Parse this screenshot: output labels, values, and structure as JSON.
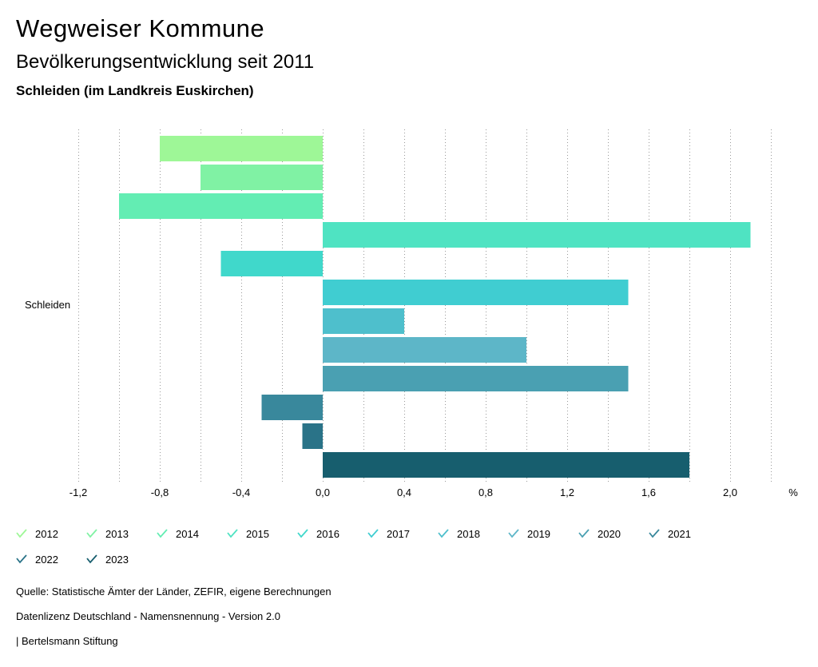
{
  "header": {
    "title": "Wegweiser Kommune",
    "subtitle": "Bevölkerungsentwicklung seit 2011",
    "region": "Schleiden (im Landkreis Euskirchen)"
  },
  "chart_data": {
    "type": "bar",
    "orientation": "horizontal",
    "categories": [
      "Schleiden"
    ],
    "series": [
      {
        "name": "2012",
        "values": [
          -0.8
        ],
        "color": "#9ef797"
      },
      {
        "name": "2013",
        "values": [
          -0.6
        ],
        "color": "#80f2a4"
      },
      {
        "name": "2014",
        "values": [
          -1.0
        ],
        "color": "#63edb3"
      },
      {
        "name": "2015",
        "values": [
          2.1
        ],
        "color": "#4fe3c2"
      },
      {
        "name": "2016",
        "values": [
          -0.5
        ],
        "color": "#40d8cb"
      },
      {
        "name": "2017",
        "values": [
          1.5
        ],
        "color": "#40cdd1"
      },
      {
        "name": "2018",
        "values": [
          0.4
        ],
        "color": "#4ebfcc"
      },
      {
        "name": "2019",
        "values": [
          1.0
        ],
        "color": "#5db6c8"
      },
      {
        "name": "2020",
        "values": [
          1.5
        ],
        "color": "#4aa0b2"
      },
      {
        "name": "2021",
        "values": [
          -0.3
        ],
        "color": "#39889c"
      },
      {
        "name": "2022",
        "values": [
          -0.1
        ],
        "color": "#2a7388"
      },
      {
        "name": "2023",
        "values": [
          1.8
        ],
        "color": "#175e6e"
      }
    ],
    "xlim": [
      -1.2,
      2.2
    ],
    "ticks": [
      -1.2,
      -0.8,
      -0.4,
      0.0,
      0.4,
      0.8,
      1.2,
      1.6,
      2.0
    ],
    "tick_labels": [
      "-1,2",
      "-0,8",
      "-0,4",
      "0,0",
      "0,4",
      "0,8",
      "1,2",
      "1,6",
      "2,0"
    ],
    "unit": "%",
    "grid": true,
    "legend": "bottom"
  },
  "footer": {
    "source": "Quelle: Statistische Ämter der Länder, ZEFIR, eigene Berechnungen",
    "license": "Datenlizenz Deutschland - Namensnennung - Version 2.0",
    "publisher": "| Bertelsmann Stiftung"
  }
}
